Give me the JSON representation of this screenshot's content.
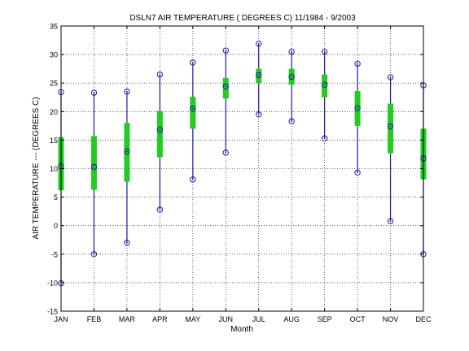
{
  "chart_data": {
    "type": "box",
    "title": "DSLN7  AIR TEMPERATURE ( DEGREES C) 11/1984 - 9/2003",
    "xlabel": "Month",
    "ylabel": "AIR TEMPERATURE --- (DEGREES C)",
    "categories": [
      "JAN",
      "FEB",
      "MAR",
      "APR",
      "MAY",
      "JUN",
      "JUL",
      "AUG",
      "SEP",
      "OCT",
      "NOV",
      "DEC"
    ],
    "ylim": [
      -15,
      35
    ],
    "yticks": [
      -15,
      -10,
      -5,
      0,
      5,
      10,
      15,
      20,
      25,
      30,
      35
    ],
    "grid": true,
    "series": [
      {
        "key": "max",
        "values": [
          23.4,
          23.3,
          23.5,
          26.5,
          28.6,
          30.7,
          31.9,
          30.5,
          30.5,
          28.4,
          26.0,
          24.6
        ]
      },
      {
        "key": "q3",
        "values": [
          15.5,
          15.7,
          18.0,
          20.1,
          22.6,
          25.9,
          27.5,
          27.5,
          26.5,
          23.6,
          21.4,
          17.0
        ]
      },
      {
        "key": "median",
        "values": [
          10.4,
          10.3,
          13.0,
          16.8,
          20.5,
          24.4,
          26.4,
          26.1,
          24.7,
          20.6,
          17.4,
          11.8
        ]
      },
      {
        "key": "q1",
        "values": [
          6.2,
          6.3,
          7.7,
          12.0,
          17.0,
          22.3,
          25.0,
          24.7,
          22.5,
          17.5,
          12.7,
          8.1
        ]
      },
      {
        "key": "min",
        "values": [
          -10.1,
          -5.0,
          -3.0,
          2.8,
          8.1,
          12.8,
          19.5,
          18.3,
          15.3,
          9.3,
          0.8,
          -5.0
        ]
      }
    ],
    "colors": {
      "whisker": "#1a1a9a",
      "box": "#22cc22",
      "marker": "#1a1a9a",
      "grid": "#000000"
    }
  }
}
